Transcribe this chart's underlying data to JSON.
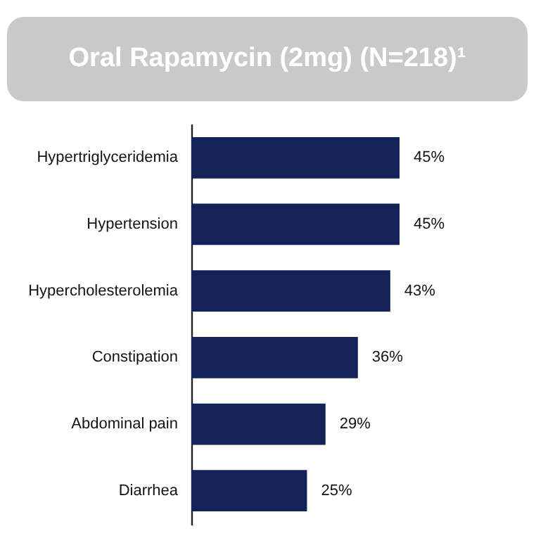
{
  "chart_data": {
    "type": "bar",
    "title": "Oral Rapamycin (2mg) (N=218)¹",
    "orientation": "horizontal",
    "color": "#14225a",
    "categories": [
      "Hypertriglyceridemia",
      "Hypertension",
      "Hypercholesterolemia",
      "Constipation",
      "Abdominal pain",
      "Diarrhea"
    ],
    "values": [
      45,
      45,
      43,
      36,
      29,
      25
    ],
    "value_labels": [
      "45%",
      "45%",
      "43%",
      "36%",
      "29%",
      "25%"
    ]
  }
}
